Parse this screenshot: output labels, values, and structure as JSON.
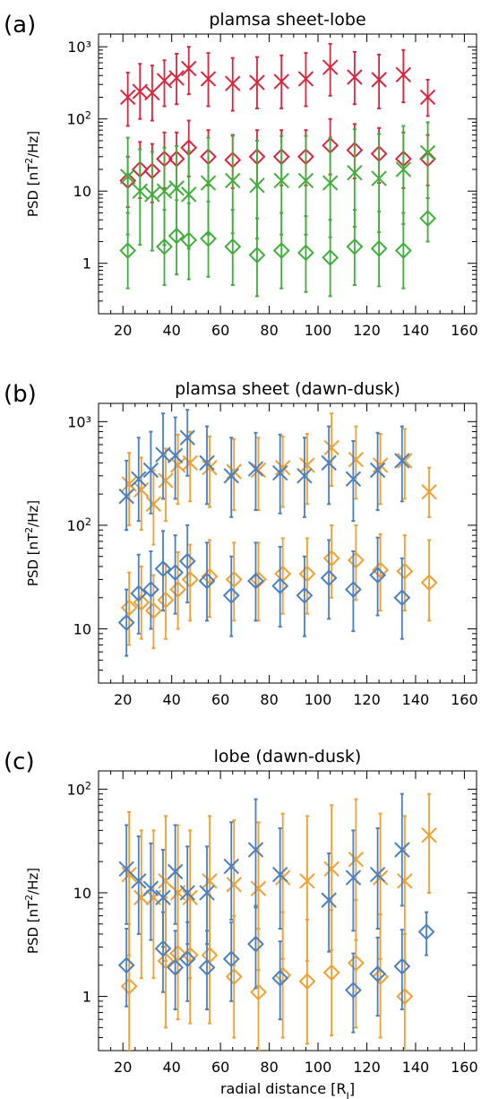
{
  "chart_data": [
    {
      "type": "scatter",
      "panel_label": "(a)",
      "title": "plamsa sheet-lobe",
      "ylabel": "PSD [nT²/Hz]",
      "xlabel": "",
      "xlim": [
        10,
        165
      ],
      "ylim": [
        0.2,
        1500
      ],
      "yscale": "log",
      "xticks": [
        "20",
        "40",
        "60",
        "80",
        "100",
        "120",
        "140",
        "160"
      ],
      "yticks": [
        {
          "value": 1,
          "label": "1"
        },
        {
          "value": 10,
          "label": "10"
        },
        {
          "value": 100,
          "label": "10²"
        },
        {
          "value": 1000,
          "label": "10³"
        }
      ],
      "series": [
        {
          "color": "#d7263d",
          "marker": "x",
          "x": [
            22,
            27,
            32,
            37,
            42,
            47,
            55,
            65,
            75,
            85,
            95,
            105,
            115,
            125,
            135,
            145
          ],
          "y": [
            200,
            240,
            230,
            340,
            370,
            500,
            360,
            310,
            320,
            330,
            360,
            520,
            380,
            350,
            410,
            200
          ],
          "lo": [
            80,
            100,
            95,
            150,
            160,
            220,
            150,
            130,
            140,
            140,
            150,
            210,
            160,
            140,
            170,
            110
          ],
          "hi": [
            440,
            580,
            550,
            650,
            800,
            1000,
            820,
            700,
            720,
            760,
            820,
            1100,
            850,
            780,
            900,
            350
          ]
        },
        {
          "color": "#d7263d",
          "marker": "diamond",
          "x": [
            22,
            27,
            32,
            37,
            42,
            47,
            55,
            65,
            75,
            85,
            95,
            105,
            115,
            125,
            135,
            145
          ],
          "y": [
            14,
            20,
            19,
            28,
            28,
            40,
            30,
            27,
            30,
            30,
            30,
            43,
            37,
            33,
            28,
            28
          ],
          "lo": [
            6,
            8,
            7,
            11,
            11,
            16,
            12,
            11,
            12,
            12,
            12,
            17,
            15,
            13,
            11,
            12
          ],
          "hi": [
            30,
            48,
            45,
            65,
            65,
            95,
            70,
            60,
            70,
            70,
            70,
            100,
            85,
            75,
            65,
            60
          ]
        },
        {
          "color": "#3fae3a",
          "marker": "x",
          "x": [
            22,
            27,
            32,
            37,
            42,
            47,
            55,
            65,
            75,
            85,
            95,
            105,
            115,
            125,
            135,
            145
          ],
          "y": [
            16,
            10,
            9,
            10,
            11,
            9,
            13,
            14,
            12,
            14,
            14,
            13,
            18,
            15,
            20,
            34
          ],
          "lo": [
            2.5,
            1.8,
            1.5,
            1.8,
            2.0,
            1.6,
            2.5,
            2.6,
            2.2,
            2.5,
            2.5,
            2.3,
            3.2,
            2.7,
            3.5,
            8
          ],
          "hi": [
            55,
            38,
            35,
            40,
            42,
            36,
            55,
            58,
            50,
            58,
            58,
            55,
            72,
            62,
            80,
            90
          ]
        },
        {
          "color": "#3fae3a",
          "marker": "diamond",
          "x": [
            22,
            37,
            42,
            47,
            55,
            65,
            75,
            85,
            95,
            105,
            115,
            125,
            135,
            145
          ],
          "y": [
            1.5,
            1.7,
            2.4,
            2.1,
            2.2,
            1.7,
            1.3,
            1.5,
            1.4,
            1.2,
            1.7,
            1.6,
            1.5,
            4.2
          ],
          "lo": [
            0.45,
            0.5,
            0.7,
            0.6,
            0.65,
            0.5,
            0.35,
            0.45,
            0.4,
            0.35,
            0.5,
            0.48,
            0.45,
            2.0
          ],
          "hi": [
            5.0,
            5.5,
            7.5,
            6.8,
            7.2,
            5.5,
            4.2,
            5.0,
            4.5,
            4.0,
            5.5,
            5.2,
            5.0,
            8.0
          ]
        }
      ]
    },
    {
      "type": "scatter",
      "panel_label": "(b)",
      "title": "plamsa sheet (dawn-dusk)",
      "ylabel": "PSD [nT²/Hz]",
      "xlabel": "",
      "xlim": [
        10,
        165
      ],
      "ylim": [
        3,
        1500
      ],
      "yscale": "log",
      "xticks": [
        "20",
        "40",
        "60",
        "80",
        "100",
        "120",
        "140",
        "160"
      ],
      "yticks": [
        {
          "value": 10,
          "label": "10"
        },
        {
          "value": 100,
          "label": "10²"
        },
        {
          "value": 1000,
          "label": "10³"
        }
      ],
      "series": [
        {
          "color": "#f0a030",
          "marker": "x",
          "x": [
            22,
            27,
            32,
            37,
            42,
            47,
            55,
            65,
            75,
            85,
            95,
            105,
            115,
            125,
            135,
            145
          ],
          "y": [
            250,
            220,
            160,
            270,
            380,
            400,
            360,
            330,
            340,
            360,
            380,
            560,
            430,
            380,
            420,
            210
          ],
          "lo": [
            100,
            90,
            65,
            110,
            160,
            170,
            150,
            140,
            140,
            150,
            160,
            240,
            180,
            160,
            180,
            120
          ],
          "hi": [
            500,
            450,
            340,
            550,
            750,
            800,
            720,
            680,
            700,
            720,
            760,
            1200,
            900,
            760,
            850,
            360
          ]
        },
        {
          "color": "#f0a030",
          "marker": "diamond",
          "x": [
            22,
            27,
            32,
            37,
            42,
            47,
            55,
            65,
            75,
            85,
            95,
            105,
            115,
            125,
            135,
            145
          ],
          "y": [
            16,
            18,
            15,
            19,
            24,
            30,
            32,
            30,
            30,
            34,
            34,
            48,
            46,
            37,
            36,
            28
          ],
          "lo": [
            7,
            8,
            6.5,
            8,
            10,
            12,
            13,
            12,
            12,
            14,
            14,
            20,
            19,
            15,
            15,
            12
          ],
          "hi": [
            35,
            40,
            33,
            42,
            55,
            65,
            72,
            68,
            68,
            75,
            75,
            100,
            100,
            82,
            80,
            72
          ]
        },
        {
          "color": "#4a7fc1",
          "marker": "x",
          "x": [
            22,
            27,
            32,
            37,
            42,
            47,
            55,
            65,
            75,
            85,
            95,
            105,
            115,
            125,
            135
          ],
          "y": [
            190,
            280,
            340,
            480,
            470,
            700,
            400,
            300,
            350,
            320,
            300,
            400,
            280,
            340,
            420
          ],
          "lo": [
            90,
            110,
            130,
            180,
            180,
            300,
            160,
            120,
            140,
            130,
            120,
            160,
            110,
            140,
            170
          ],
          "hi": [
            420,
            700,
            800,
            1200,
            1100,
            1300,
            900,
            700,
            780,
            750,
            700,
            900,
            650,
            780,
            900
          ]
        },
        {
          "color": "#4a7fc1",
          "marker": "diamond",
          "x": [
            22,
            27,
            32,
            37,
            42,
            47,
            55,
            65,
            75,
            85,
            95,
            105,
            115,
            125,
            135
          ],
          "y": [
            11.5,
            22,
            24,
            38,
            35,
            45,
            29,
            21,
            29,
            26,
            21,
            31,
            24,
            33,
            20
          ],
          "lo": [
            5.5,
            9,
            10,
            15,
            14,
            18,
            12,
            8.5,
            12,
            10.5,
            8.5,
            12.5,
            9.5,
            13.5,
            8
          ],
          "hi": [
            24,
            52,
            56,
            88,
            80,
            100,
            68,
            50,
            68,
            62,
            50,
            72,
            56,
            76,
            48
          ]
        }
      ]
    },
    {
      "type": "scatter",
      "panel_label": "(c)",
      "title": "lobe (dawn-dusk)",
      "ylabel": "PSD [nT²/Hz]",
      "xlabel": "radial distance [Rⱼ]",
      "xlim": [
        10,
        165
      ],
      "ylim": [
        0.3,
        150
      ],
      "yscale": "log",
      "xticks": [
        "20",
        "40",
        "60",
        "80",
        "100",
        "120",
        "140",
        "160"
      ],
      "yticks": [
        {
          "value": 1,
          "label": "1"
        },
        {
          "value": 10,
          "label": "10"
        },
        {
          "value": 100,
          "label": "10²"
        }
      ],
      "series": [
        {
          "color": "#f0a030",
          "marker": "x",
          "x": [
            22,
            27,
            32,
            37,
            42,
            47,
            55,
            65,
            75,
            85,
            95,
            105,
            115,
            125,
            135,
            145
          ],
          "y": [
            15,
            9,
            9,
            13,
            10,
            9,
            13,
            12,
            11,
            14,
            13,
            17,
            21,
            14,
            13,
            36
          ],
          "lo": [
            2.5,
            1.5,
            1.5,
            2.2,
            1.7,
            1.5,
            2.2,
            2.0,
            1.8,
            2.3,
            2.2,
            2.8,
            3.5,
            2.3,
            2.2,
            10
          ],
          "hi": [
            60,
            40,
            40,
            55,
            45,
            40,
            55,
            50,
            48,
            58,
            55,
            70,
            80,
            58,
            55,
            90
          ]
        },
        {
          "color": "#f0a030",
          "marker": "diamond",
          "x": [
            22,
            37,
            42,
            47,
            55,
            65,
            75,
            85,
            95,
            105,
            115,
            125,
            135
          ],
          "y": [
            1.25,
            2.2,
            2.6,
            2.5,
            2.5,
            1.55,
            1.1,
            1.6,
            1.4,
            1.7,
            2.1,
            1.55,
            1.0
          ],
          "lo": [
            0.3,
            0.5,
            0.6,
            0.55,
            0.55,
            0.4,
            0.3,
            0.4,
            0.35,
            0.42,
            0.5,
            0.4,
            0.28
          ],
          "hi": [
            5.0,
            9.0,
            10.0,
            9.5,
            9.5,
            6.0,
            4.5,
            6.5,
            5.5,
            6.8,
            8.5,
            6.2,
            4.0
          ]
        },
        {
          "color": "#4a7fc1",
          "marker": "x",
          "x": [
            22,
            27,
            32,
            37,
            42,
            47,
            55,
            65,
            75,
            85,
            105,
            115,
            125,
            135
          ],
          "y": [
            17,
            13,
            11,
            9,
            16,
            10,
            10,
            18,
            26,
            15,
            8.5,
            14,
            15,
            26
          ],
          "lo": [
            5,
            4,
            3.5,
            3,
            5,
            3.2,
            3.2,
            5.5,
            7.5,
            4.5,
            2.7,
            4.3,
            4.5,
            7.5
          ],
          "hi": [
            45,
            35,
            30,
            26,
            45,
            28,
            28,
            48,
            80,
            42,
            24,
            40,
            42,
            90
          ]
        },
        {
          "color": "#4a7fc1",
          "marker": "diamond",
          "x": [
            22,
            37,
            42,
            47,
            55,
            65,
            75,
            85,
            115,
            125,
            135,
            145
          ],
          "y": [
            2.0,
            2.9,
            1.9,
            2.3,
            1.9,
            2.3,
            3.2,
            1.5,
            1.15,
            1.65,
            1.95,
            4.2
          ],
          "lo": [
            0.8,
            1.1,
            0.75,
            0.9,
            0.75,
            0.9,
            1.2,
            0.6,
            0.45,
            0.65,
            0.75,
            2.5
          ],
          "hi": [
            4.5,
            6.5,
            4.3,
            5.2,
            4.3,
            5.2,
            7.2,
            3.4,
            2.6,
            3.7,
            4.4,
            6.5
          ]
        }
      ]
    }
  ]
}
